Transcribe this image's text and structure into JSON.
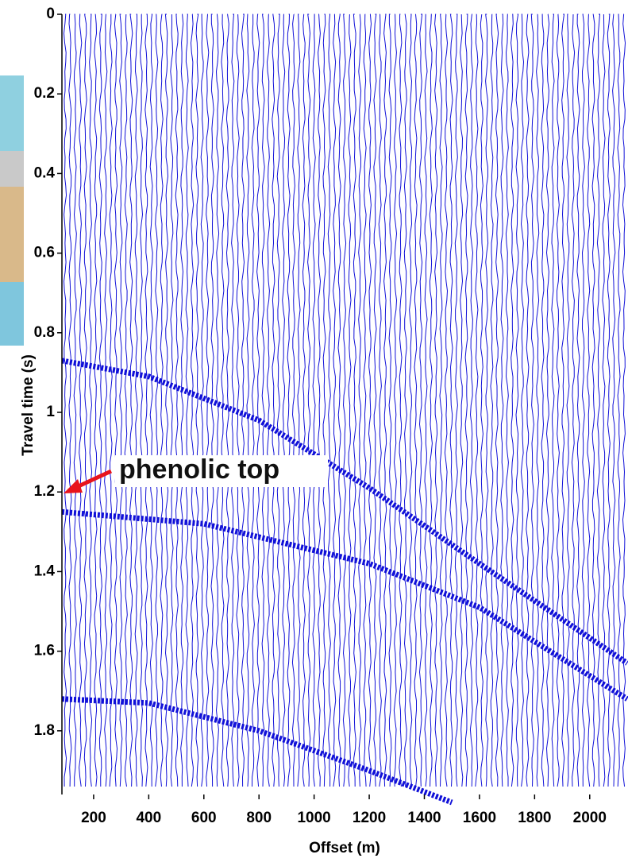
{
  "chart_data": {
    "type": "seismic",
    "xlabel": "Offset (m)",
    "ylabel": "Travel time (s)",
    "annotation": "phenolic top",
    "xlim": [
      85,
      2136
    ],
    "ylim": [
      0,
      1.96
    ],
    "y_inverted": true,
    "xticks": [
      200,
      400,
      600,
      800,
      1000,
      1200,
      1400,
      1600,
      1800,
      2000
    ],
    "yticks": [
      0,
      0.2,
      0.4,
      0.6,
      0.8,
      1,
      1.2,
      1.4,
      1.6,
      1.8
    ],
    "trace_color": "#1010d8",
    "series": [
      {
        "color": "#1010d8",
        "x": [
          85,
          400,
          800,
          1200,
          1600,
          2136
        ],
        "values": [
          0.87,
          0.91,
          1.02,
          1.19,
          1.38,
          1.63
        ]
      },
      {
        "color": "#1010d8",
        "x": [
          85,
          600,
          1200,
          1600,
          2136
        ],
        "values": [
          1.25,
          1.28,
          1.38,
          1.49,
          1.72
        ]
      },
      {
        "color": "#1010d8",
        "x": [
          85,
          400,
          800,
          1200,
          1500
        ],
        "values": [
          1.72,
          1.73,
          1.8,
          1.9,
          1.98
        ]
      }
    ]
  }
}
